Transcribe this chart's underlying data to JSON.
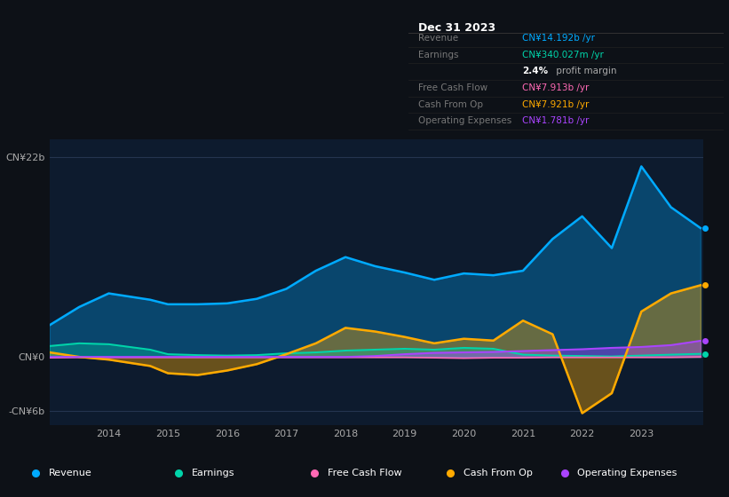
{
  "bg_color": "#0d1117",
  "chart_bg": "#0d1b2e",
  "years": [
    2013.0,
    2013.5,
    2014.0,
    2014.7,
    2015.0,
    2015.5,
    2016.0,
    2016.5,
    2017.0,
    2017.5,
    2018.0,
    2018.5,
    2019.0,
    2019.5,
    2020.0,
    2020.5,
    2021.0,
    2021.5,
    2022.0,
    2022.5,
    2023.0,
    2023.5,
    2024.0
  ],
  "revenue": [
    3.5,
    5.5,
    7.0,
    6.3,
    5.8,
    5.8,
    5.9,
    6.4,
    7.5,
    9.5,
    11.0,
    10.0,
    9.3,
    8.5,
    9.2,
    9.0,
    9.5,
    13.0,
    15.5,
    12.0,
    21.0,
    16.5,
    14.2
  ],
  "earnings": [
    1.2,
    1.5,
    1.4,
    0.8,
    0.3,
    0.2,
    0.15,
    0.2,
    0.4,
    0.5,
    0.7,
    0.8,
    0.9,
    0.8,
    1.0,
    0.9,
    0.25,
    0.15,
    0.1,
    0.05,
    0.15,
    0.25,
    0.34
  ],
  "free_cash_flow": [
    -0.1,
    -0.05,
    -0.05,
    -0.05,
    -0.05,
    -0.05,
    -0.05,
    -0.05,
    -0.05,
    -0.05,
    -0.05,
    -0.05,
    -0.05,
    -0.1,
    -0.15,
    -0.1,
    -0.1,
    -0.05,
    -0.05,
    -0.05,
    -0.05,
    -0.05,
    0.0
  ],
  "cash_from_op": [
    0.5,
    0.0,
    -0.3,
    -1.0,
    -1.8,
    -2.0,
    -1.5,
    -0.8,
    0.3,
    1.5,
    3.2,
    2.8,
    2.2,
    1.5,
    2.0,
    1.8,
    4.0,
    2.5,
    -6.2,
    -4.0,
    5.0,
    7.0,
    7.9
  ],
  "operating_expenses": [
    0.0,
    0.0,
    0.0,
    0.0,
    0.0,
    0.0,
    0.0,
    0.0,
    0.0,
    0.0,
    0.0,
    0.1,
    0.3,
    0.45,
    0.5,
    0.55,
    0.65,
    0.75,
    0.85,
    1.0,
    1.1,
    1.3,
    1.78
  ],
  "revenue_color": "#00aaff",
  "earnings_color": "#00d4aa",
  "free_cash_flow_color": "#ff69b4",
  "cash_from_op_color": "#ffaa00",
  "operating_expenses_color": "#aa44ff",
  "ylim_min": -7.5,
  "ylim_max": 24,
  "y_tick_vals": [
    22,
    0,
    -6
  ],
  "y_tick_labels": [
    "CN¥22b",
    "CN¥0",
    "-CN¥6b"
  ],
  "x_ticks": [
    2014,
    2015,
    2016,
    2017,
    2018,
    2019,
    2020,
    2021,
    2022,
    2023
  ],
  "info_title": "Dec 31 2023",
  "legend_items": [
    {
      "label": "Revenue",
      "color": "#00aaff"
    },
    {
      "label": "Earnings",
      "color": "#00d4aa"
    },
    {
      "label": "Free Cash Flow",
      "color": "#ff69b4"
    },
    {
      "label": "Cash From Op",
      "color": "#ffaa00"
    },
    {
      "label": "Operating Expenses",
      "color": "#aa44ff"
    }
  ]
}
